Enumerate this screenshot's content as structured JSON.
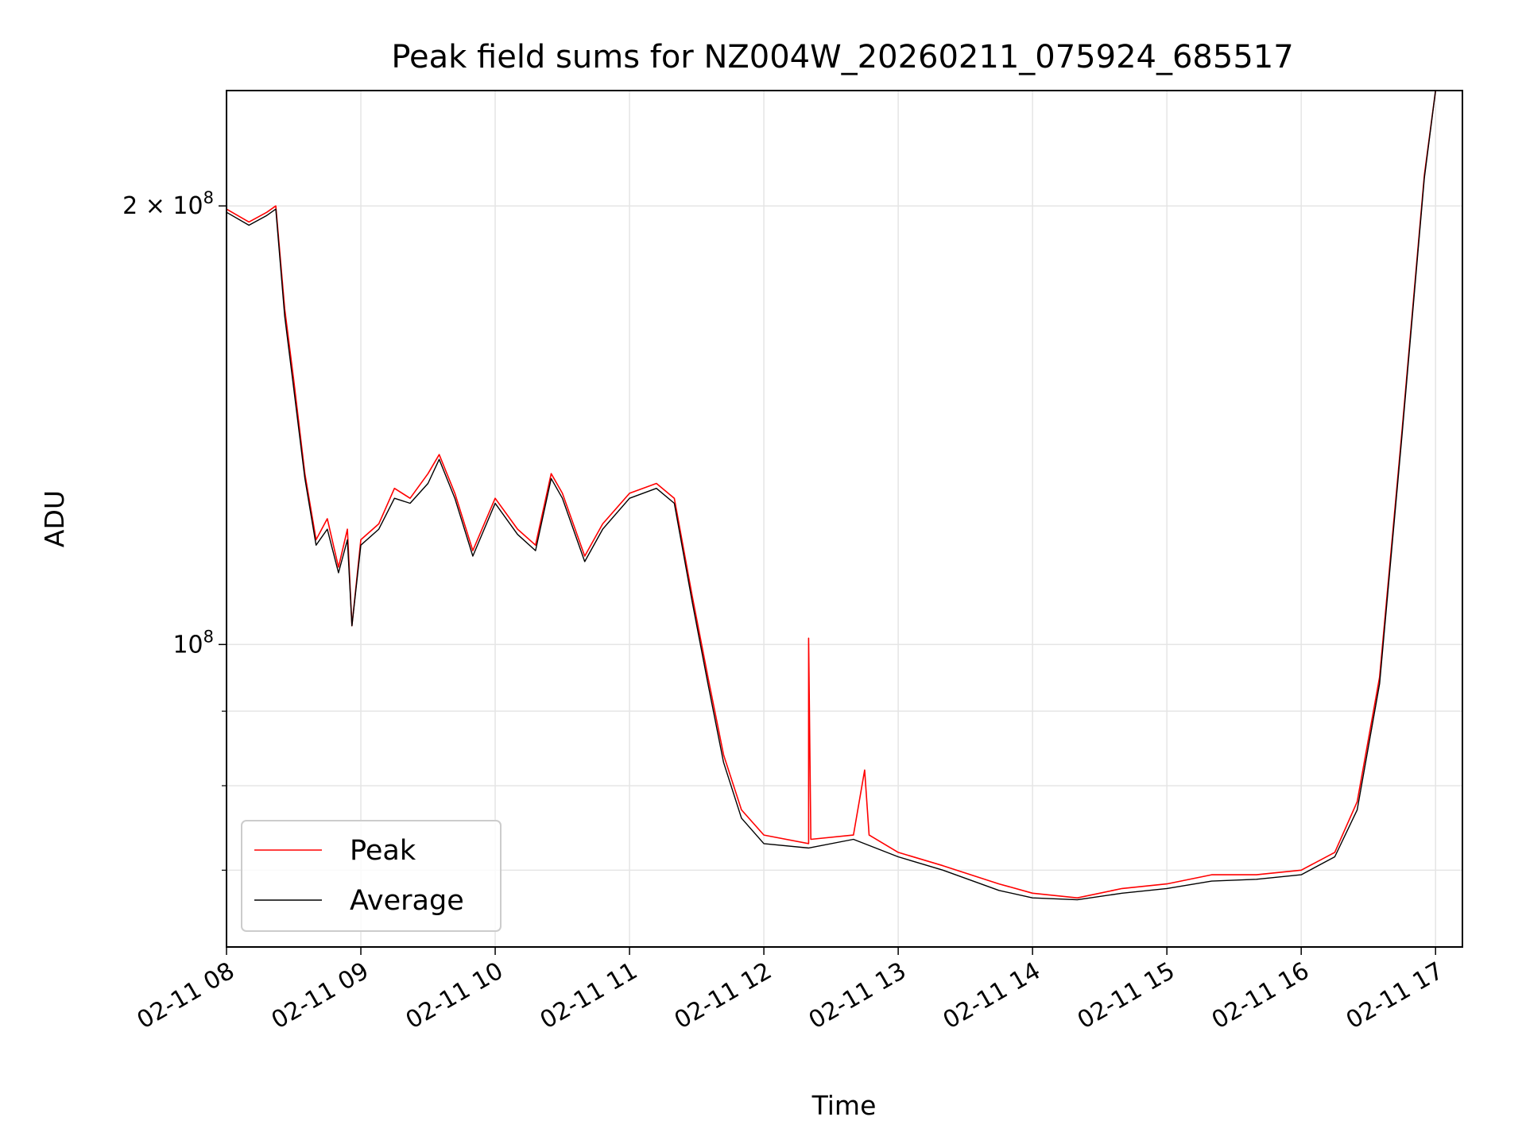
{
  "chart_data": {
    "type": "line",
    "title": "Peak field sums for NZ004W_20260211_075924_685517",
    "xlabel": "Time",
    "ylabel": "ADU",
    "yscale": "log",
    "grid": true,
    "legend_position": "lower-left",
    "x_ticks": [
      "02-11 08",
      "02-11 09",
      "02-11 10",
      "02-11 11",
      "02-11 12",
      "02-11 13",
      "02-11 14",
      "02-11 15",
      "02-11 16",
      "02-11 17"
    ],
    "y_ticks": [
      {
        "value": 200000000,
        "base": "2 × 10",
        "exp": "8"
      },
      {
        "value": 100000000,
        "base": "10",
        "exp": "8"
      }
    ],
    "xlim": [
      "2026-02-11 08:00",
      "2026-02-11 17:12"
    ],
    "ylim": [
      62000000,
      240000000
    ],
    "series": [
      {
        "name": "Peak",
        "color": "#ff0000",
        "points": [
          [
            "2026-02-11 08:00",
            199000000
          ],
          [
            "2026-02-11 08:10",
            195000000
          ],
          [
            "2026-02-11 08:18",
            198000000
          ],
          [
            "2026-02-11 08:22",
            200000000
          ],
          [
            "2026-02-11 08:26",
            170000000
          ],
          [
            "2026-02-11 08:30",
            152000000
          ],
          [
            "2026-02-11 08:35",
            131000000
          ],
          [
            "2026-02-11 08:40",
            118000000
          ],
          [
            "2026-02-11 08:45",
            122000000
          ],
          [
            "2026-02-11 08:50",
            113000000
          ],
          [
            "2026-02-11 08:54",
            120000000
          ],
          [
            "2026-02-11 08:56",
            103000000
          ],
          [
            "2026-02-11 09:00",
            118000000
          ],
          [
            "2026-02-11 09:08",
            121000000
          ],
          [
            "2026-02-11 09:15",
            128000000
          ],
          [
            "2026-02-11 09:22",
            126000000
          ],
          [
            "2026-02-11 09:30",
            131000000
          ],
          [
            "2026-02-11 09:35",
            135000000
          ],
          [
            "2026-02-11 09:42",
            127000000
          ],
          [
            "2026-02-11 09:50",
            116000000
          ],
          [
            "2026-02-11 10:00",
            126000000
          ],
          [
            "2026-02-11 10:10",
            120000000
          ],
          [
            "2026-02-11 10:18",
            117000000
          ],
          [
            "2026-02-11 10:25",
            131000000
          ],
          [
            "2026-02-11 10:30",
            127000000
          ],
          [
            "2026-02-11 10:40",
            115000000
          ],
          [
            "2026-02-11 10:48",
            121000000
          ],
          [
            "2026-02-11 11:00",
            127000000
          ],
          [
            "2026-02-11 11:12",
            129000000
          ],
          [
            "2026-02-11 11:20",
            126000000
          ],
          [
            "2026-02-11 11:28",
            108000000
          ],
          [
            "2026-02-11 11:35",
            95000000
          ],
          [
            "2026-02-11 11:42",
            84000000
          ],
          [
            "2026-02-11 11:50",
            77000000
          ],
          [
            "2026-02-11 12:00",
            74000000
          ],
          [
            "2026-02-11 12:20",
            73000000
          ],
          [
            "2026-02-11 12:20",
            101000000
          ],
          [
            "2026-02-11 12:21",
            73500000
          ],
          [
            "2026-02-11 12:40",
            74000000
          ],
          [
            "2026-02-11 12:45",
            82000000
          ],
          [
            "2026-02-11 12:47",
            74000000
          ],
          [
            "2026-02-11 13:00",
            72000000
          ],
          [
            "2026-02-11 13:20",
            70500000
          ],
          [
            "2026-02-11 13:45",
            68500000
          ],
          [
            "2026-02-11 14:00",
            67500000
          ],
          [
            "2026-02-11 14:20",
            67000000
          ],
          [
            "2026-02-11 14:40",
            68000000
          ],
          [
            "2026-02-11 15:00",
            68500000
          ],
          [
            "2026-02-11 15:20",
            69500000
          ],
          [
            "2026-02-11 15:40",
            69500000
          ],
          [
            "2026-02-11 16:00",
            70000000
          ],
          [
            "2026-02-11 16:15",
            72000000
          ],
          [
            "2026-02-11 16:25",
            78000000
          ],
          [
            "2026-02-11 16:35",
            95000000
          ],
          [
            "2026-02-11 16:45",
            140000000
          ],
          [
            "2026-02-11 16:55",
            210000000
          ],
          [
            "2026-02-11 17:00",
            240000000
          ]
        ]
      },
      {
        "name": "Average",
        "color": "#000000",
        "points": [
          [
            "2026-02-11 08:00",
            198000000
          ],
          [
            "2026-02-11 08:10",
            194000000
          ],
          [
            "2026-02-11 08:18",
            197000000
          ],
          [
            "2026-02-11 08:22",
            199000000
          ],
          [
            "2026-02-11 08:26",
            168000000
          ],
          [
            "2026-02-11 08:30",
            150000000
          ],
          [
            "2026-02-11 08:35",
            130000000
          ],
          [
            "2026-02-11 08:40",
            117000000
          ],
          [
            "2026-02-11 08:45",
            120000000
          ],
          [
            "2026-02-11 08:50",
            112000000
          ],
          [
            "2026-02-11 08:54",
            118000000
          ],
          [
            "2026-02-11 08:56",
            103000000
          ],
          [
            "2026-02-11 09:00",
            117000000
          ],
          [
            "2026-02-11 09:08",
            120000000
          ],
          [
            "2026-02-11 09:15",
            126000000
          ],
          [
            "2026-02-11 09:22",
            125000000
          ],
          [
            "2026-02-11 09:30",
            129000000
          ],
          [
            "2026-02-11 09:35",
            134000000
          ],
          [
            "2026-02-11 09:42",
            126000000
          ],
          [
            "2026-02-11 09:50",
            115000000
          ],
          [
            "2026-02-11 10:00",
            125000000
          ],
          [
            "2026-02-11 10:10",
            119000000
          ],
          [
            "2026-02-11 10:18",
            116000000
          ],
          [
            "2026-02-11 10:25",
            130000000
          ],
          [
            "2026-02-11 10:30",
            126000000
          ],
          [
            "2026-02-11 10:40",
            114000000
          ],
          [
            "2026-02-11 10:48",
            120000000
          ],
          [
            "2026-02-11 11:00",
            126000000
          ],
          [
            "2026-02-11 11:12",
            128000000
          ],
          [
            "2026-02-11 11:20",
            125000000
          ],
          [
            "2026-02-11 11:28",
            107000000
          ],
          [
            "2026-02-11 11:35",
            94000000
          ],
          [
            "2026-02-11 11:42",
            83000000
          ],
          [
            "2026-02-11 11:50",
            76000000
          ],
          [
            "2026-02-11 12:00",
            73000000
          ],
          [
            "2026-02-11 12:20",
            72500000
          ],
          [
            "2026-02-11 12:40",
            73500000
          ],
          [
            "2026-02-11 13:00",
            71500000
          ],
          [
            "2026-02-11 13:20",
            70000000
          ],
          [
            "2026-02-11 13:45",
            67800000
          ],
          [
            "2026-02-11 14:00",
            67000000
          ],
          [
            "2026-02-11 14:20",
            66800000
          ],
          [
            "2026-02-11 14:40",
            67500000
          ],
          [
            "2026-02-11 15:00",
            68000000
          ],
          [
            "2026-02-11 15:20",
            68800000
          ],
          [
            "2026-02-11 15:40",
            69000000
          ],
          [
            "2026-02-11 16:00",
            69500000
          ],
          [
            "2026-02-11 16:15",
            71500000
          ],
          [
            "2026-02-11 16:25",
            77000000
          ],
          [
            "2026-02-11 16:35",
            94000000
          ],
          [
            "2026-02-11 16:45",
            139000000
          ],
          [
            "2026-02-11 16:55",
            209000000
          ],
          [
            "2026-02-11 17:00",
            240000000
          ]
        ]
      }
    ]
  }
}
